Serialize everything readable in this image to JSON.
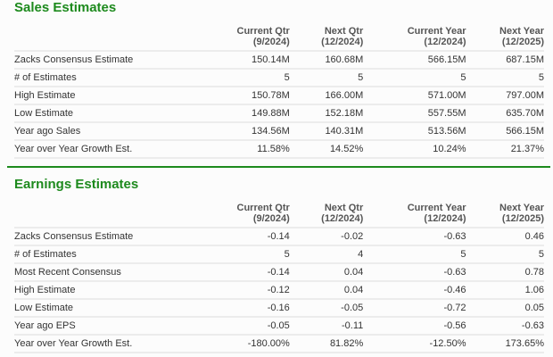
{
  "columns": [
    {
      "line1": "Current Qtr",
      "line2": "(9/2024)"
    },
    {
      "line1": "Next Qtr",
      "line2": "(12/2024)"
    },
    {
      "line1": "Current Year",
      "line2": "(12/2024)"
    },
    {
      "line1": "Next Year",
      "line2": "(12/2025)"
    }
  ],
  "sales": {
    "title": "Sales Estimates",
    "rows": [
      {
        "label": "Zacks Consensus Estimate",
        "values": [
          "150.14M",
          "160.68M",
          "566.15M",
          "687.15M"
        ]
      },
      {
        "label": "# of Estimates",
        "values": [
          "5",
          "5",
          "5",
          "5"
        ]
      },
      {
        "label": "High Estimate",
        "values": [
          "150.78M",
          "166.00M",
          "571.00M",
          "797.00M"
        ]
      },
      {
        "label": "Low Estimate",
        "values": [
          "149.88M",
          "152.18M",
          "557.55M",
          "635.70M"
        ]
      },
      {
        "label": "Year ago Sales",
        "values": [
          "134.56M",
          "140.31M",
          "513.56M",
          "566.15M"
        ]
      },
      {
        "label": "Year over Year Growth Est.",
        "values": [
          "11.58%",
          "14.52%",
          "10.24%",
          "21.37%"
        ]
      }
    ]
  },
  "earnings": {
    "title": "Earnings Estimates",
    "rows": [
      {
        "label": "Zacks Consensus Estimate",
        "values": [
          "-0.14",
          "-0.02",
          "-0.63",
          "0.46"
        ]
      },
      {
        "label": "# of Estimates",
        "values": [
          "5",
          "4",
          "5",
          "5"
        ]
      },
      {
        "label": "Most Recent Consensus",
        "values": [
          "-0.14",
          "0.04",
          "-0.63",
          "0.78"
        ]
      },
      {
        "label": "High Estimate",
        "values": [
          "-0.12",
          "0.04",
          "-0.46",
          "1.06"
        ]
      },
      {
        "label": "Low Estimate",
        "values": [
          "-0.16",
          "-0.05",
          "-0.72",
          "0.05"
        ]
      },
      {
        "label": "Year ago EPS",
        "values": [
          "-0.05",
          "-0.11",
          "-0.56",
          "-0.63"
        ]
      },
      {
        "label": "Year over Year Growth Est.",
        "values": [
          "-180.00%",
          "81.82%",
          "-12.50%",
          "173.65%"
        ]
      }
    ]
  },
  "colors": {
    "accent": "#1d8a1d"
  }
}
